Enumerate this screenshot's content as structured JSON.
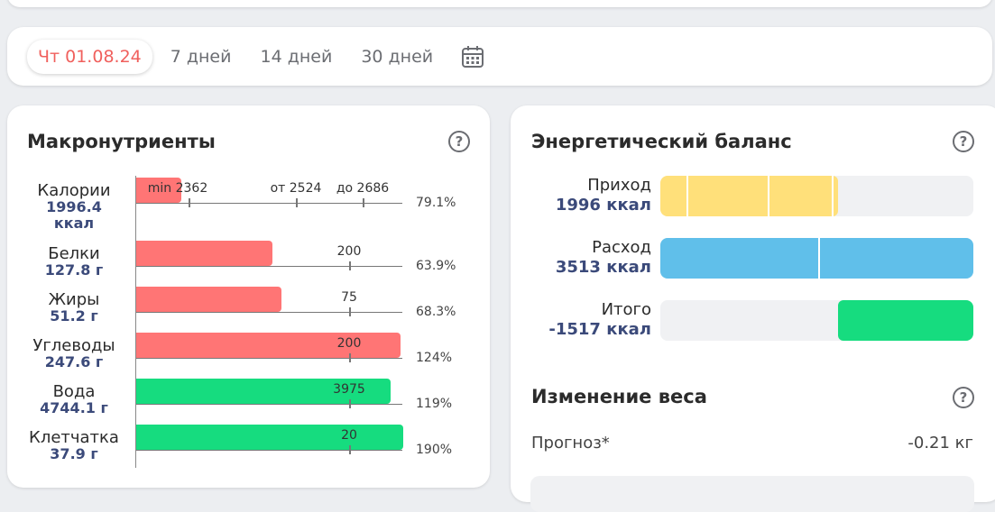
{
  "date_tabs": [
    {
      "label": "Чт 01.08.24",
      "active": true
    },
    {
      "label": "7 дней"
    },
    {
      "label": "14 дней"
    },
    {
      "label": "30 дней"
    }
  ],
  "calendar_icon": "calendar-icon",
  "macro": {
    "title": "Макронутриенты",
    "help": "?",
    "rows": [
      {
        "name": "Калории",
        "value": "1996.4",
        "unit": "ккал",
        "pct": "79.1%",
        "color": "#ff7575",
        "ticks": [
          "min 2362",
          "от 2524",
          "до 2686"
        ]
      },
      {
        "name": "Белки",
        "value": "127.8 г",
        "pct": "63.9%",
        "color": "#ff7575",
        "ticks": [
          "200"
        ]
      },
      {
        "name": "Жиры",
        "value": "51.2 г",
        "pct": "68.3%",
        "color": "#ff7575",
        "ticks": [
          "75"
        ]
      },
      {
        "name": "Углеводы",
        "value": "247.6 г",
        "pct": "124%",
        "color": "#ff7575",
        "ticks": [
          "200"
        ]
      },
      {
        "name": "Вода",
        "value": "4744.1 г",
        "pct": "119%",
        "color": "#16dc7f",
        "ticks": [
          "3975"
        ]
      },
      {
        "name": "Клетчатка",
        "value": "37.9 г",
        "pct": "190%",
        "color": "#16dc7f",
        "ticks": [
          "20"
        ]
      }
    ]
  },
  "energy": {
    "title": "Энергетический баланс",
    "help": "?",
    "rows": [
      {
        "name": "Приход",
        "value": "1996 ккал",
        "color": "#ffe07a"
      },
      {
        "name": "Расход",
        "value": "3513 ккал",
        "color": "#60bfea"
      },
      {
        "name": "Итого",
        "value": "-1517 ккал",
        "color": "#16dc7f"
      }
    ]
  },
  "weight": {
    "title": "Изменение веса",
    "help": "?",
    "forecast_label": "Прогноз*",
    "forecast_value": "-0.21 кг"
  }
}
